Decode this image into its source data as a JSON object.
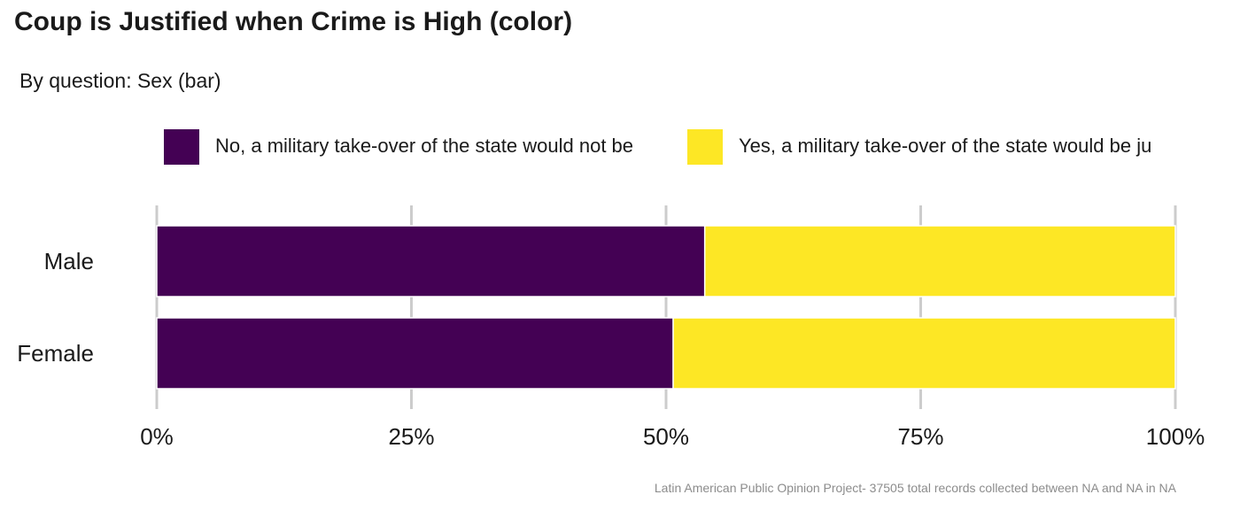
{
  "title": "Coup is Justified when Crime is High (color)",
  "subtitle": "By question: Sex (bar)",
  "caption": "Latin American Public Opinion Project- 37505 total records collected between NA and NA in  NA",
  "colors": {
    "no": "#440154",
    "yes": "#FDE725",
    "grid": "#cccccc",
    "text": "#1a1a1a"
  },
  "chart_data": {
    "type": "bar",
    "orientation": "horizontal",
    "stacked": true,
    "categories": [
      "Male",
      "Female"
    ],
    "series": [
      {
        "name": "No, a military take-over of the state would not be",
        "color": "#440154",
        "values": [
          0.538,
          0.507
        ]
      },
      {
        "name": "Yes, a military take-over of the state would be ju",
        "color": "#FDE725",
        "values": [
          0.462,
          0.493
        ]
      }
    ],
    "xlim": [
      0,
      1
    ],
    "x_ticks": [
      0,
      0.25,
      0.5,
      0.75,
      1
    ],
    "x_tick_labels": [
      "0%",
      "25%",
      "50%",
      "75%",
      "100%"
    ],
    "legend_position": "top",
    "grid": "vertical major lines"
  }
}
